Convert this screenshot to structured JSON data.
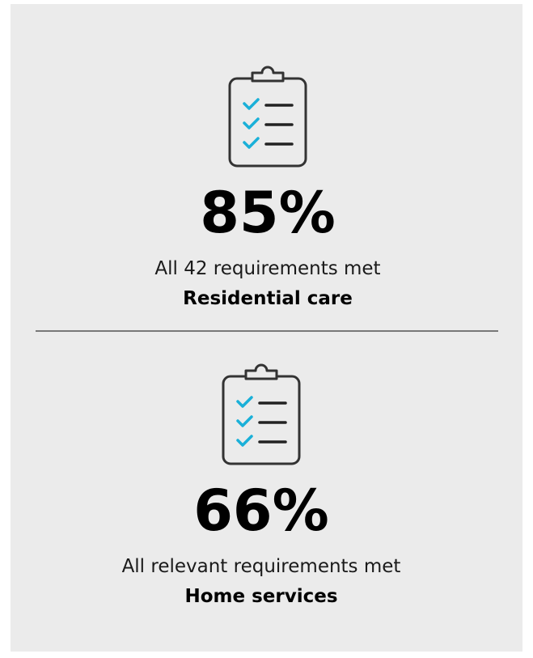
{
  "stats": [
    {
      "value": "85%",
      "description": "All 42 requirements met",
      "category": "Residential care"
    },
    {
      "value": "66%",
      "description": "All relevant requirements met",
      "category": "Home services"
    }
  ]
}
